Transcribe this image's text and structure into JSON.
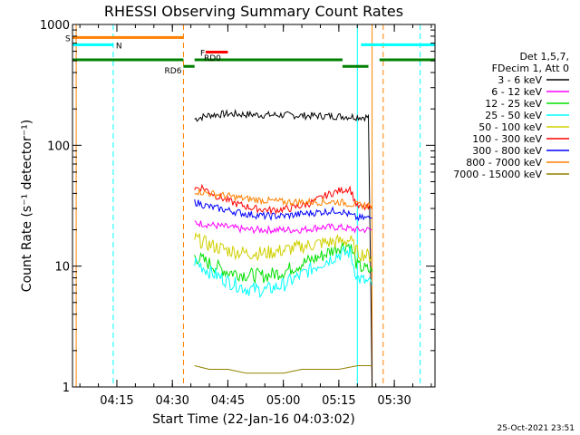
{
  "title": "RHESSI Observing Summary Count Rates",
  "footer_date": "25-Oct-2021 23:51",
  "chart_data": {
    "type": "line",
    "title": "RHESSI Observing Summary Count Rates",
    "xlabel": "Start Time (22-Jan-16 04:03:02)",
    "ylabel": "Count Rate (s⁻¹ detector⁻¹)",
    "y_scale": "log",
    "ylim": [
      1,
      1000
    ],
    "xlim": [
      "04:03",
      "05:41"
    ],
    "x_ticks": [
      "04:15",
      "04:30",
      "04:45",
      "05:00",
      "05:15",
      "05:30"
    ],
    "y_ticks": [
      "1",
      "10",
      "100",
      "1000"
    ],
    "grid": false,
    "legend_position": "right",
    "legend_header": [
      "Det 1,5,7,",
      "FDecim 1, Att 0"
    ],
    "series": [
      {
        "name": "3 - 6 keV",
        "color": "#000000",
        "x": [
          "04:36",
          "04:40",
          "04:45",
          "04:50",
          "04:55",
          "05:00",
          "05:05",
          "05:10",
          "05:15",
          "05:20",
          "05:23",
          "05:24"
        ],
        "y": [
          165,
          178,
          182,
          180,
          178,
          178,
          176,
          175,
          174,
          172,
          171,
          1
        ]
      },
      {
        "name": "6 - 12 keV",
        "color": "#ff00ff",
        "x": [
          "04:36",
          "04:40",
          "04:45",
          "04:50",
          "04:55",
          "05:00",
          "05:05",
          "05:10",
          "05:15",
          "05:20",
          "05:24"
        ],
        "y": [
          23,
          22,
          21,
          20,
          20,
          20,
          20,
          21,
          21,
          20,
          20
        ]
      },
      {
        "name": "12 - 25 keV",
        "color": "#00e000",
        "x": [
          "04:36",
          "04:40",
          "04:45",
          "04:50",
          "04:55",
          "05:00",
          "05:05",
          "05:10",
          "05:15",
          "05:18",
          "05:20",
          "05:24"
        ],
        "y": [
          12,
          10.5,
          9,
          8.5,
          8.3,
          9,
          10.5,
          12,
          14.5,
          15,
          10,
          9
        ]
      },
      {
        "name": "25 - 50 keV",
        "color": "#00ffff",
        "x": [
          "04:36",
          "04:40",
          "04:45",
          "04:50",
          "04:55",
          "05:00",
          "05:05",
          "05:10",
          "05:15",
          "05:18",
          "05:20",
          "05:24"
        ],
        "y": [
          11,
          9,
          7.5,
          6.5,
          6.3,
          7,
          8.5,
          10.5,
          12.5,
          13,
          8,
          7
        ]
      },
      {
        "name": "50 - 100 keV",
        "color": "#d0d000",
        "x": [
          "04:36",
          "04:40",
          "04:45",
          "04:50",
          "04:55",
          "05:00",
          "05:05",
          "05:10",
          "05:15",
          "05:18",
          "05:20",
          "05:24"
        ],
        "y": [
          17,
          15,
          13.5,
          12.8,
          12.8,
          13.5,
          14.5,
          15.5,
          16,
          16.5,
          13,
          12
        ]
      },
      {
        "name": "100 - 300 keV",
        "color": "#ff0000",
        "x": [
          "04:36",
          "04:38",
          "04:42",
          "04:47",
          "04:52",
          "04:57",
          "05:02",
          "05:07",
          "05:12",
          "05:15",
          "05:18",
          "05:20",
          "05:24"
        ],
        "y": [
          44,
          45,
          38,
          33,
          30,
          29,
          30,
          33,
          39,
          42,
          44,
          31,
          30
        ]
      },
      {
        "name": "300 - 800 keV",
        "color": "#0000ff",
        "x": [
          "04:36",
          "04:40",
          "04:45",
          "04:50",
          "04:55",
          "05:00",
          "05:05",
          "05:10",
          "05:15",
          "05:20",
          "05:24"
        ],
        "y": [
          34,
          31,
          29,
          27,
          26,
          26,
          27,
          28,
          29,
          25,
          25
        ]
      },
      {
        "name": "800 - 7000 keV",
        "color": "#ff8000",
        "x": [
          "04:36",
          "04:40",
          "04:45",
          "04:50",
          "04:55",
          "05:00",
          "05:05",
          "05:10",
          "05:15",
          "05:20",
          "05:24"
        ],
        "y": [
          42,
          40,
          38,
          36,
          35,
          34,
          34,
          34,
          34,
          32,
          32
        ]
      },
      {
        "name": "7000 - 15000 keV",
        "color": "#908000",
        "x": [
          "04:36",
          "04:40",
          "04:45",
          "04:50",
          "04:55",
          "05:00",
          "05:05",
          "05:10",
          "05:15",
          "05:20",
          "05:24"
        ],
        "y": [
          1.5,
          1.4,
          1.4,
          1.3,
          1.3,
          1.3,
          1.4,
          1.4,
          1.4,
          1.5,
          1.5
        ]
      }
    ],
    "flags": [
      {
        "label": "S",
        "color": "#ff8000",
        "level": 780,
        "segments": [
          [
            "04:03",
            "04:33"
          ]
        ]
      },
      {
        "label": "N",
        "color": "#00ffff",
        "level": 680,
        "segments": [
          [
            "04:03",
            "04:14"
          ],
          [
            "05:21",
            "05:41"
          ]
        ]
      },
      {
        "label": "F",
        "color": "#ff0000",
        "level": 590,
        "segments": [
          [
            "04:39",
            "04:45"
          ]
        ]
      },
      {
        "label": "RD0",
        "color": "#008000",
        "level": 510,
        "segments": [
          [
            "04:03",
            "04:33"
          ],
          [
            "04:36",
            "05:16"
          ],
          [
            "05:26",
            "05:41"
          ]
        ]
      },
      {
        "label": "RD6",
        "color": "#008000",
        "level": 450,
        "segments": [
          [
            "04:33",
            "04:36"
          ],
          [
            "05:16",
            "05:23"
          ]
        ]
      }
    ],
    "vlines": [
      {
        "color": "#ff8000",
        "style": "solid",
        "x": "04:04"
      },
      {
        "color": "#00ffff",
        "style": "dashed",
        "x": "04:14"
      },
      {
        "color": "#ff8000",
        "style": "dashed",
        "x": "04:33"
      },
      {
        "color": "#00ffff",
        "style": "solid",
        "x": "05:20"
      },
      {
        "color": "#ff8000",
        "style": "solid",
        "x": "05:24"
      },
      {
        "color": "#ff8000",
        "style": "dashed",
        "x": "05:27"
      },
      {
        "color": "#00ffff",
        "style": "dashed",
        "x": "05:37"
      }
    ]
  }
}
